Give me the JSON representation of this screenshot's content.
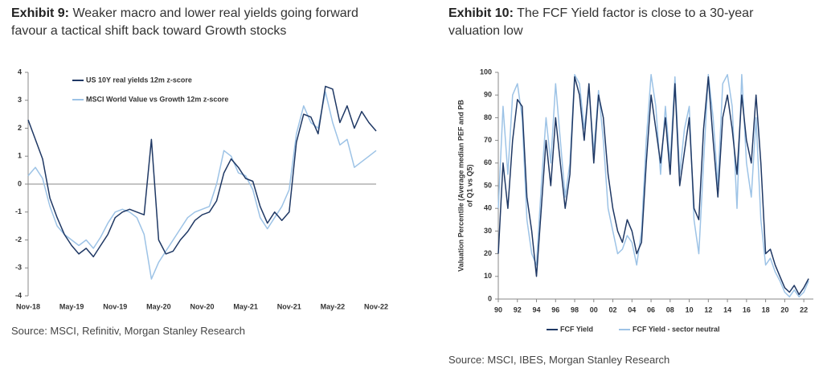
{
  "chart_data": [
    {
      "type": "line",
      "label": "Exhibit 9:",
      "title": "Weaker macro and lower real yields going forward favour a tactical shift back toward Growth stocks",
      "source": "Source: MSCI, Refinitiv, Morgan Stanley Research",
      "legend": "upper left",
      "categories": [
        "Nov-18",
        null,
        null,
        null,
        null,
        null,
        "May-19",
        null,
        null,
        null,
        null,
        null,
        "Nov-19",
        null,
        null,
        null,
        null,
        null,
        "May-20",
        null,
        null,
        null,
        null,
        null,
        "Nov-20",
        null,
        null,
        null,
        null,
        null,
        "May-21",
        null,
        null,
        null,
        null,
        null,
        "Nov-21",
        null,
        null,
        null,
        null,
        null,
        "May-22",
        null,
        null,
        null,
        null,
        null,
        "Nov-22"
      ],
      "ylim": [
        -4,
        4
      ],
      "yticks": [
        -4,
        -3,
        -2,
        -1,
        0,
        1,
        2,
        3,
        4
      ],
      "series": [
        {
          "name": "US 10Y real yields 12m z-score",
          "color": "#1f3864",
          "values": [
            2.3,
            1.6,
            0.9,
            -0.5,
            -1.2,
            -1.8,
            -2.2,
            -2.5,
            -2.3,
            -2.6,
            -2.2,
            -1.8,
            -1.2,
            -1.0,
            -0.9,
            -1.0,
            -1.1,
            1.6,
            -2.0,
            -2.5,
            -2.4,
            -2.0,
            -1.7,
            -1.3,
            -1.1,
            -1.0,
            -0.6,
            0.4,
            0.9,
            0.6,
            0.2,
            0.1,
            -0.8,
            -1.4,
            -1.0,
            -1.3,
            -1.0,
            1.5,
            2.5,
            2.4,
            1.8,
            3.5,
            3.4,
            2.2,
            2.8,
            2.0,
            2.6,
            2.2,
            1.9
          ]
        },
        {
          "name": "MSCI World Value vs Growth 12m z-score",
          "color": "#9dc3e6",
          "values": [
            0.3,
            0.6,
            0.2,
            -0.8,
            -1.5,
            -1.8,
            -2.0,
            -2.2,
            -2.0,
            -2.3,
            -1.9,
            -1.4,
            -1.0,
            -0.9,
            -1.0,
            -1.2,
            -1.8,
            -3.4,
            -2.8,
            -2.4,
            -2.0,
            -1.6,
            -1.2,
            -1.0,
            -0.9,
            -0.8,
            0.0,
            1.2,
            1.0,
            0.4,
            0.3,
            -0.2,
            -1.2,
            -1.6,
            -1.2,
            -0.8,
            -0.2,
            1.8,
            2.8,
            2.2,
            2.0,
            3.3,
            2.2,
            1.4,
            1.6,
            0.6,
            0.8,
            1.0,
            1.2
          ]
        }
      ]
    },
    {
      "type": "line",
      "label": "Exhibit 10:",
      "title": "The FCF Yield factor is close to a 30-year valuation low",
      "source": "Source: MSCI, IBES, Morgan Stanley Research",
      "legend": "bottom",
      "ylabel": [
        "Valuation Percentile (Average median PEF and PB",
        "of Q1 vs Q5)"
      ],
      "x": [
        1990,
        1990.5,
        1991,
        1991.5,
        1992,
        1992.5,
        1993,
        1993.5,
        1994,
        1994.5,
        1995,
        1995.5,
        1996,
        1996.5,
        1997,
        1997.5,
        1998,
        1998.5,
        1999,
        1999.5,
        2000,
        2000.5,
        2001,
        2001.5,
        2002,
        2002.5,
        2003,
        2003.5,
        2004,
        2004.5,
        2005,
        2005.5,
        2006,
        2006.5,
        2007,
        2007.5,
        2008,
        2008.5,
        2009,
        2009.5,
        2010,
        2010.5,
        2011,
        2011.5,
        2012,
        2012.5,
        2013,
        2013.5,
        2014,
        2014.5,
        2015,
        2015.5,
        2016,
        2016.5,
        2017,
        2017.5,
        2018,
        2018.5,
        2019,
        2019.5,
        2020,
        2020.5,
        2021,
        2021.5,
        2022,
        2022.5
      ],
      "xlim": [
        1990,
        2023
      ],
      "xticks": [
        {
          "value": 1990,
          "label": "90"
        },
        {
          "value": 1992,
          "label": "92"
        },
        {
          "value": 1994,
          "label": "94"
        },
        {
          "value": 1996,
          "label": "96"
        },
        {
          "value": 1998,
          "label": "98"
        },
        {
          "value": 2000,
          "label": "00"
        },
        {
          "value": 2002,
          "label": "02"
        },
        {
          "value": 2004,
          "label": "04"
        },
        {
          "value": 2006,
          "label": "06"
        },
        {
          "value": 2008,
          "label": "08"
        },
        {
          "value": 2010,
          "label": "10"
        },
        {
          "value": 2012,
          "label": "12"
        },
        {
          "value": 2014,
          "label": "14"
        },
        {
          "value": 2016,
          "label": "16"
        },
        {
          "value": 2018,
          "label": "18"
        },
        {
          "value": 2020,
          "label": "20"
        },
        {
          "value": 2022,
          "label": "22"
        }
      ],
      "ylim": [
        0,
        100
      ],
      "yticks": [
        0,
        10,
        20,
        30,
        40,
        50,
        60,
        70,
        80,
        90,
        100
      ],
      "series": [
        {
          "name": "FCF Yield",
          "color": "#1f3864",
          "values": [
            20,
            60,
            40,
            70,
            88,
            85,
            45,
            30,
            10,
            40,
            70,
            50,
            80,
            60,
            40,
            55,
            98,
            90,
            70,
            95,
            60,
            90,
            80,
            55,
            40,
            30,
            25,
            35,
            30,
            20,
            25,
            60,
            90,
            75,
            60,
            80,
            55,
            95,
            50,
            65,
            80,
            40,
            35,
            75,
            98,
            70,
            45,
            80,
            90,
            75,
            55,
            90,
            70,
            60,
            90,
            60,
            20,
            22,
            15,
            10,
            5,
            3,
            6,
            2,
            5,
            9
          ]
        },
        {
          "name": "FCF Yield - sector neutral",
          "color": "#9dc3e6",
          "values": [
            40,
            85,
            55,
            90,
            95,
            80,
            35,
            20,
            15,
            50,
            80,
            60,
            95,
            70,
            45,
            60,
            99,
            95,
            75,
            92,
            65,
            92,
            70,
            40,
            30,
            20,
            22,
            28,
            25,
            15,
            30,
            70,
            99,
            85,
            55,
            85,
            60,
            98,
            55,
            75,
            85,
            35,
            20,
            60,
            99,
            80,
            50,
            95,
            99,
            85,
            40,
            99,
            60,
            45,
            80,
            35,
            15,
            18,
            12,
            8,
            3,
            1,
            4,
            1,
            3,
            8
          ]
        }
      ]
    }
  ]
}
